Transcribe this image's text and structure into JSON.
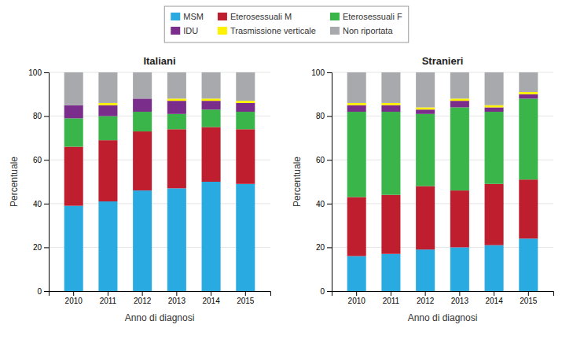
{
  "chart_data": [
    {
      "type": "bar",
      "title": "Italiani",
      "stacked": true,
      "legend": "top",
      "xlabel": "Anno di diagnosi",
      "ylabel": "Percentuale",
      "categories": [
        "2010",
        "2011",
        "2012",
        "2013",
        "2014",
        "2015"
      ],
      "series": [
        {
          "name": "MSM",
          "color": "#29ABE2",
          "values": [
            39,
            41,
            46,
            47,
            50,
            49
          ]
        },
        {
          "name": "Eterosessuali M",
          "color": "#BE1E2D",
          "values": [
            27,
            28,
            27,
            27,
            25,
            25
          ]
        },
        {
          "name": "Eterosessuali F",
          "color": "#39B54A",
          "values": [
            13,
            11,
            9,
            7,
            8,
            8
          ]
        },
        {
          "name": "IDU",
          "color": "#7B2D8B",
          "values": [
            6,
            5,
            6,
            6,
            4,
            4
          ]
        },
        {
          "name": "Trasmissione verticale",
          "color": "#FFF200",
          "values": [
            0,
            1,
            0,
            1,
            1,
            1
          ]
        },
        {
          "name": "Non riportata",
          "color": "#A7A9AC",
          "values": [
            15,
            14,
            12,
            12,
            12,
            13
          ]
        }
      ],
      "ylim": [
        0,
        100
      ],
      "yticks": [
        0,
        20,
        40,
        60,
        80,
        100
      ]
    },
    {
      "type": "bar",
      "title": "Stranieri",
      "stacked": true,
      "xlabel": "Anno di diagnosi",
      "ylabel": "Percentuale",
      "categories": [
        "2010",
        "2011",
        "2012",
        "2013",
        "2014",
        "2015"
      ],
      "series": [
        {
          "name": "MSM",
          "color": "#29ABE2",
          "values": [
            16,
            17,
            19,
            20,
            21,
            24
          ]
        },
        {
          "name": "Eterosessuali M",
          "color": "#BE1E2D",
          "values": [
            27,
            27,
            29,
            26,
            28,
            27
          ]
        },
        {
          "name": "Eterosessuali F",
          "color": "#39B54A",
          "values": [
            39,
            38,
            33,
            38,
            33,
            37
          ]
        },
        {
          "name": "IDU",
          "color": "#7B2D8B",
          "values": [
            3,
            3,
            2,
            3,
            2,
            2
          ]
        },
        {
          "name": "Trasmissione verticale",
          "color": "#FFF200",
          "values": [
            1,
            1,
            1,
            1,
            1,
            1
          ]
        },
        {
          "name": "Non riportata",
          "color": "#A7A9AC",
          "values": [
            14,
            14,
            16,
            12,
            15,
            9
          ]
        }
      ],
      "ylim": [
        0,
        100
      ],
      "yticks": [
        0,
        20,
        40,
        60,
        80,
        100
      ]
    }
  ]
}
